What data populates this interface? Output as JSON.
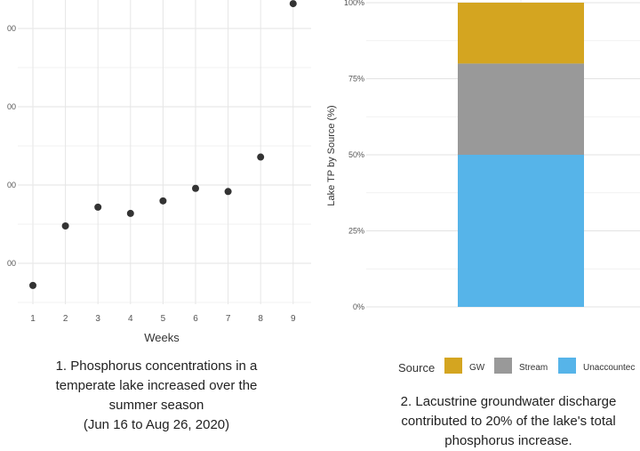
{
  "chart_data": [
    {
      "type": "scatter",
      "x": [
        1,
        2,
        3,
        4,
        5,
        6,
        7,
        8,
        9
      ],
      "y": [
        0.06,
        0.25,
        0.31,
        0.29,
        0.33,
        0.37,
        0.36,
        0.47,
        0.96
      ],
      "xlabel": "Weeks",
      "xticks": [
        "1",
        "2",
        "3",
        "4",
        "5",
        "6",
        "7",
        "8",
        "9"
      ],
      "yticks_visible": [
        "00",
        "00",
        "00",
        "00"
      ],
      "grid": true,
      "point_color": "#333333",
      "caption": [
        "1. Phosphorus concentrations in a",
        "temperate lake increased over the",
        "summer season",
        "(Jun 16 to Aug 26, 2020)"
      ]
    },
    {
      "type": "bar",
      "stacked": true,
      "ylabel": "Lake TP by Source (%)",
      "yticks": [
        "0%",
        "25%",
        "50%",
        "75%",
        "100%"
      ],
      "ylim": [
        0,
        100
      ],
      "series": [
        {
          "name": "Unaccounted",
          "legend_label": "Unaccountec",
          "value": 50,
          "color": "#56B4E9"
        },
        {
          "name": "Stream",
          "legend_label": "Stream",
          "value": 30,
          "color": "#999999"
        },
        {
          "name": "GW",
          "legend_label": "GW",
          "value": 20,
          "color": "#D4A520"
        }
      ],
      "legend_title": "Source",
      "legend_order": [
        "GW",
        "Stream",
        "Unaccounted"
      ],
      "grid": true,
      "caption": [
        "2. Lacustrine groundwater discharge",
        "contributed to 20% of the lake's total",
        "phosphorus increase."
      ]
    }
  ]
}
